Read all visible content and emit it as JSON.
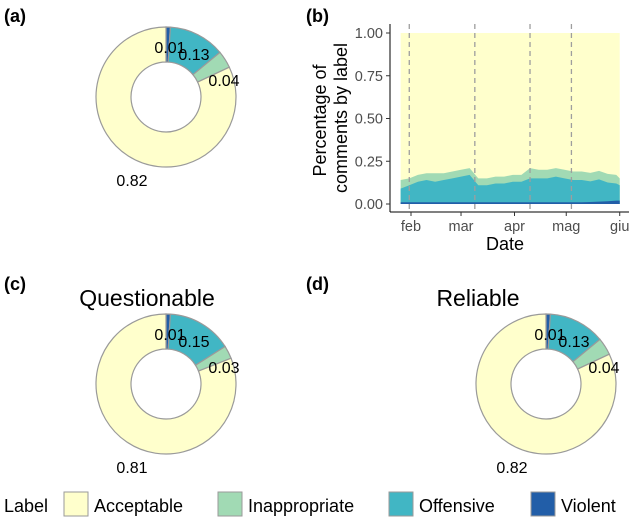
{
  "colors": {
    "Acceptable": "#FFFFCC",
    "Inappropriate": "#A1DAB4",
    "Offensive": "#41B6C4",
    "Violent": "#225EA8",
    "outline": "#9a9a9a",
    "dash": "#9e9e9e"
  },
  "legend": {
    "title": "Label",
    "entries": [
      "Acceptable",
      "Inappropriate",
      "Offensive",
      "Violent"
    ]
  },
  "chart_data": [
    {
      "panel": "(a)",
      "type": "pie",
      "title": "",
      "categories": [
        "Violent",
        "Offensive",
        "Inappropriate",
        "Acceptable"
      ],
      "values": [
        0.01,
        0.13,
        0.04,
        0.82
      ],
      "labels": [
        "0.01",
        "0.13",
        "0.04",
        "0.82"
      ]
    },
    {
      "panel": "(b)",
      "type": "area",
      "title": "",
      "xlabel": "Date",
      "ylabel": "Percentage of comments by label",
      "ylim": [
        0,
        1
      ],
      "yticks": [
        "0.00",
        "0.25",
        "0.50",
        "0.75",
        "1.00"
      ],
      "xticks": [
        {
          "label": "feb",
          "date": "02-01"
        },
        {
          "label": "mar",
          "date": "03-01"
        },
        {
          "label": "apr",
          "date": "04-01"
        },
        {
          "label": "mag",
          "date": "05-01"
        },
        {
          "label": "giu",
          "date": "06-01"
        }
      ],
      "event_lines": [
        "01-31",
        "03-09",
        "04-10",
        "05-04"
      ],
      "x": [
        "01-26",
        "01-31",
        "02-05",
        "02-10",
        "02-15",
        "02-20",
        "02-25",
        "03-01",
        "03-06",
        "03-11",
        "03-16",
        "03-21",
        "03-26",
        "03-31",
        "04-05",
        "04-10",
        "04-15",
        "04-20",
        "04-25",
        "04-30",
        "05-05",
        "05-10",
        "05-15",
        "05-20",
        "05-25",
        "05-30",
        "06-01"
      ],
      "series": [
        {
          "name": "Violent",
          "values": [
            0.01,
            0.01,
            0.01,
            0.01,
            0.01,
            0.01,
            0.01,
            0.01,
            0.01,
            0.01,
            0.01,
            0.01,
            0.01,
            0.01,
            0.01,
            0.01,
            0.01,
            0.01,
            0.01,
            0.01,
            0.01,
            0.01,
            0.012,
            0.014,
            0.016,
            0.02,
            0.02
          ]
        },
        {
          "name": "Offensive",
          "values": [
            0.08,
            0.1,
            0.12,
            0.13,
            0.12,
            0.13,
            0.14,
            0.15,
            0.16,
            0.1,
            0.1,
            0.11,
            0.11,
            0.12,
            0.12,
            0.14,
            0.14,
            0.14,
            0.15,
            0.14,
            0.13,
            0.13,
            0.12,
            0.13,
            0.11,
            0.1,
            0.09
          ]
        },
        {
          "name": "Inappropriate",
          "values": [
            0.05,
            0.04,
            0.04,
            0.04,
            0.05,
            0.04,
            0.04,
            0.04,
            0.04,
            0.04,
            0.04,
            0.04,
            0.04,
            0.04,
            0.04,
            0.06,
            0.05,
            0.05,
            0.05,
            0.05,
            0.05,
            0.05,
            0.05,
            0.05,
            0.05,
            0.05,
            0.04
          ]
        },
        {
          "name": "Acceptable",
          "fill_to": 1.0
        }
      ]
    },
    {
      "panel": "(c)",
      "type": "pie",
      "title": "Questionable",
      "categories": [
        "Violent",
        "Offensive",
        "Inappropriate",
        "Acceptable"
      ],
      "values": [
        0.01,
        0.15,
        0.03,
        0.81
      ],
      "labels": [
        "0.01",
        "0.15",
        "0.03",
        "0.81"
      ]
    },
    {
      "panel": "(d)",
      "type": "pie",
      "title": "Reliable",
      "categories": [
        "Violent",
        "Offensive",
        "Inappropriate",
        "Acceptable"
      ],
      "values": [
        0.01,
        0.13,
        0.04,
        0.82
      ],
      "labels": [
        "0.01",
        "0.13",
        "0.04",
        "0.82"
      ]
    }
  ]
}
